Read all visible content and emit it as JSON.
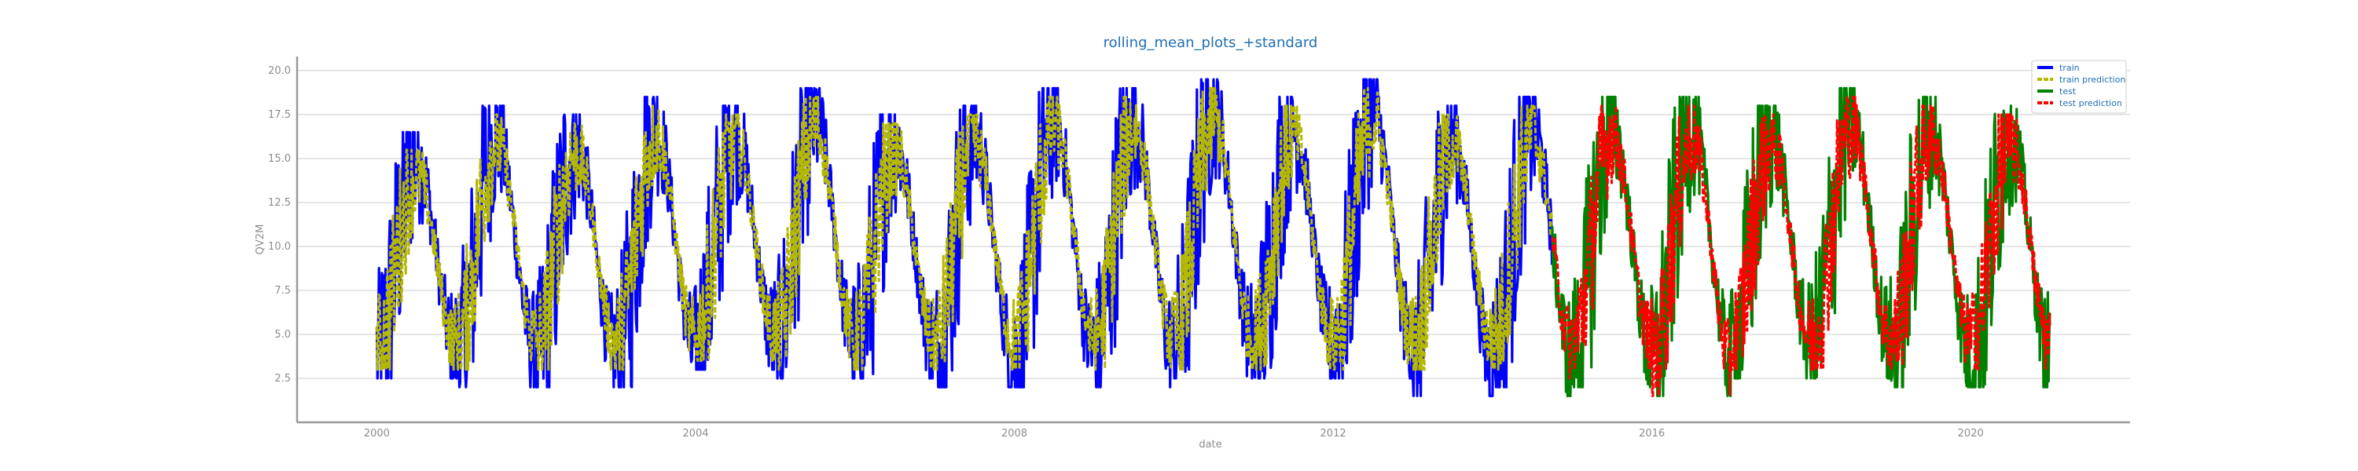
{
  "chart_data": {
    "type": "line",
    "title": "rolling_mean_plots_+standard",
    "xlabel": "date",
    "ylabel": "QV2M",
    "xlim": [
      "1999-01-01",
      "2022-01-01"
    ],
    "ylim": [
      0,
      20.8
    ],
    "x_ticks": [
      "2000",
      "2004",
      "2008",
      "2012",
      "2016",
      "2020"
    ],
    "y_ticks": [
      "2.5",
      "5.0",
      "7.5",
      "10.0",
      "12.5",
      "15.0",
      "17.5",
      "20.0"
    ],
    "grid": "horizontal",
    "legend_position": "top-right",
    "series": [
      {
        "name": "train",
        "color": "#0000ff",
        "style": "solid",
        "x_range": [
          "2000-01-01",
          "2014-09-30"
        ],
        "seasonal_peaks": [
          16.5,
          18.0,
          17.5,
          18.5,
          18.0,
          19.0,
          17.5,
          18.0,
          19.0,
          19.0,
          19.5,
          18.5,
          19.5,
          18.0,
          18.5
        ],
        "seasonal_troughs": [
          2.5,
          2.0,
          2.0,
          2.0,
          3.0,
          2.5,
          2.5,
          2.0,
          2.0,
          2.0,
          2.5,
          2.5,
          2.5,
          1.5,
          2.0
        ]
      },
      {
        "name": "train prediction",
        "color": "#b5b800",
        "style": "dashed",
        "x_range": [
          "2000-01-01",
          "2014-09-30"
        ],
        "seasonal_peaks": [
          15.5,
          17.5,
          17.0,
          18.0,
          17.5,
          18.5,
          17.0,
          17.5,
          18.5,
          18.5,
          19.0,
          18.0,
          19.0,
          17.5,
          18.0
        ],
        "seasonal_troughs": [
          3.0,
          3.0,
          3.0,
          3.0,
          3.5,
          3.0,
          3.0,
          3.0,
          3.0,
          3.0,
          3.0,
          3.0,
          3.0,
          3.0,
          3.0
        ]
      },
      {
        "name": "test",
        "color": "#008000",
        "style": "solid",
        "x_range": [
          "2014-10-01",
          "2020-12-31"
        ],
        "seasonal_peaks": [
          19.5,
          18.5,
          18.5,
          18.0,
          19.0,
          18.5,
          18.0
        ],
        "seasonal_troughs": [
          1.5,
          2.0,
          1.5,
          2.5,
          2.5,
          2.0,
          2.0
        ]
      },
      {
        "name": "test prediction",
        "color": "#ff0000",
        "style": "dashed",
        "x_range": [
          "2014-10-01",
          "2020-12-31"
        ],
        "seasonal_peaks": [
          19.0,
          18.0,
          18.0,
          17.5,
          18.5,
          18.0,
          17.5
        ],
        "seasonal_troughs": [
          2.5,
          3.0,
          1.5,
          3.0,
          3.0,
          3.0,
          3.0
        ]
      }
    ]
  }
}
